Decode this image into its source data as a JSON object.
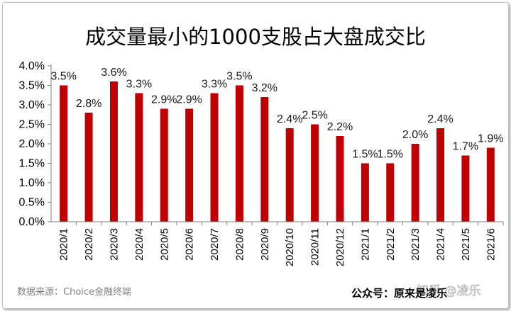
{
  "chart_data": {
    "type": "bar",
    "title": "成交量最小的1000支股占大盘成交比",
    "categories": [
      "2020/1",
      "2020/2",
      "2020/3",
      "2020/4",
      "2020/5",
      "2020/6",
      "2020/7",
      "2020/8",
      "2020/9",
      "2020/10",
      "2020/11",
      "2020/12",
      "2021/1",
      "2021/2",
      "2021/3",
      "2021/4",
      "2021/5",
      "2021/6"
    ],
    "values": [
      3.5,
      2.8,
      3.6,
      3.3,
      2.9,
      2.9,
      3.3,
      3.5,
      3.2,
      2.4,
      2.5,
      2.2,
      1.5,
      1.5,
      2.0,
      2.4,
      1.7,
      1.9
    ],
    "data_labels": [
      "3.5%",
      "2.8%",
      "3.6%",
      "3.3%",
      "2.9%",
      "2.9%",
      "3.3%",
      "3.5%",
      "3.2%",
      "2.4%",
      "2.5%",
      "2.2%",
      "1.5%",
      "1.5%",
      "2.0%",
      "2.4%",
      "1.7%",
      "1.9%"
    ],
    "yticks": [
      "0.0%",
      "0.5%",
      "1.0%",
      "1.5%",
      "2.0%",
      "2.5%",
      "3.0%",
      "3.5%",
      "4.0%"
    ],
    "ylim": [
      0,
      4.0
    ],
    "bar_color": "#c00000",
    "grid": false,
    "legend": "none"
  },
  "footer": {
    "source": "数据来源：Choice金融终端",
    "credit": "公众号：原来是凌乐",
    "watermark": "知乎 @凌乐"
  }
}
